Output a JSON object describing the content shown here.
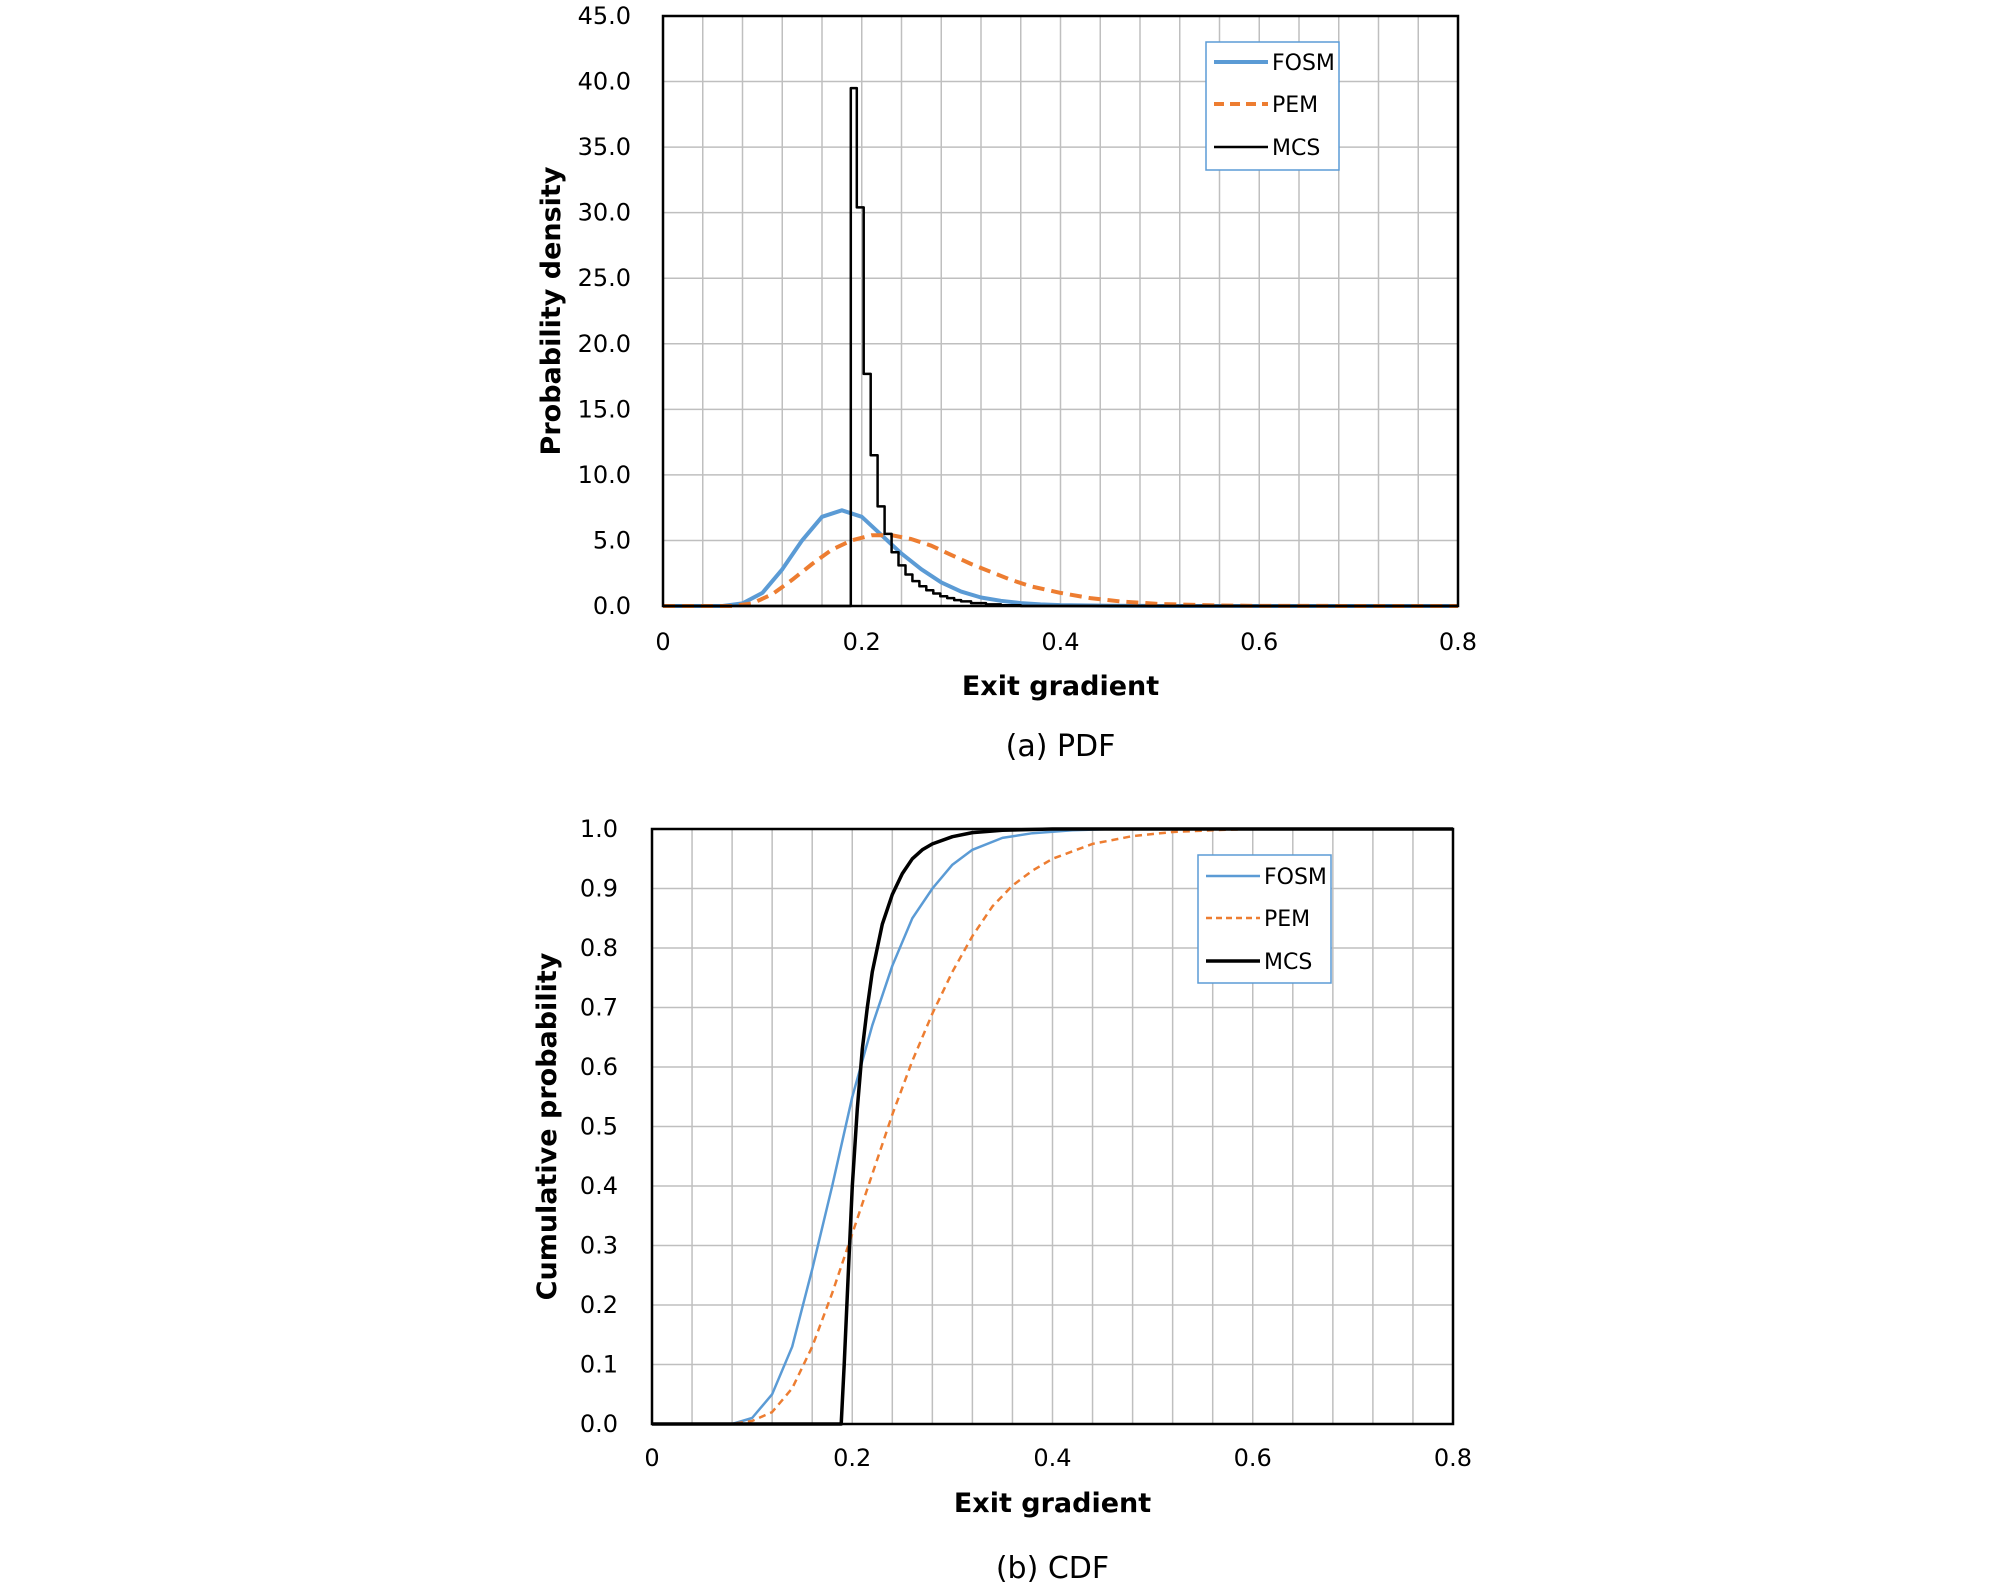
{
  "colors": {
    "fosm": "#5b9bd5",
    "pem": "#ed7d31",
    "mcs": "#000000",
    "grid": "#bfbfbf"
  },
  "chart_data": [
    {
      "type": "line",
      "caption": "(a)  PDF",
      "xlabel": "Exit gradient",
      "ylabel": "Probability density",
      "xlim": [
        0,
        0.8
      ],
      "ylim": [
        0,
        45
      ],
      "x_ticks": [
        0,
        0.2,
        0.4,
        0.6,
        0.8
      ],
      "x_tick_labels": [
        "0",
        "0.2",
        "0.4",
        "0.6",
        "0.8"
      ],
      "y_ticks": [
        0,
        5,
        10,
        15,
        20,
        25,
        30,
        35,
        40,
        45
      ],
      "y_tick_labels": [
        "0.0",
        "5.0",
        "10.0",
        "15.0",
        "20.0",
        "25.0",
        "30.0",
        "35.0",
        "40.0",
        "45.0"
      ],
      "grid": true,
      "legend": "top-right",
      "series": [
        {
          "name": "FOSM",
          "style": "solid",
          "x": [
            0,
            0.06,
            0.08,
            0.1,
            0.12,
            0.14,
            0.16,
            0.18,
            0.2,
            0.22,
            0.24,
            0.26,
            0.28,
            0.3,
            0.32,
            0.34,
            0.36,
            0.38,
            0.4,
            0.45,
            0.5,
            0.6,
            0.8
          ],
          "y": [
            0,
            0,
            0.2,
            1.0,
            2.8,
            5.0,
            6.8,
            7.3,
            6.8,
            5.4,
            4.0,
            2.8,
            1.8,
            1.1,
            0.65,
            0.4,
            0.22,
            0.12,
            0.07,
            0.02,
            0,
            0,
            0
          ]
        },
        {
          "name": "PEM",
          "style": "dashed",
          "x": [
            0,
            0.07,
            0.09,
            0.11,
            0.13,
            0.15,
            0.17,
            0.19,
            0.21,
            0.23,
            0.25,
            0.27,
            0.29,
            0.31,
            0.33,
            0.35,
            0.37,
            0.4,
            0.43,
            0.46,
            0.5,
            0.55,
            0.6,
            0.8
          ],
          "y": [
            0,
            0,
            0.2,
            0.9,
            2.0,
            3.2,
            4.3,
            5.0,
            5.4,
            5.4,
            5.1,
            4.6,
            3.9,
            3.2,
            2.6,
            2.0,
            1.5,
            1.0,
            0.6,
            0.35,
            0.15,
            0.05,
            0.01,
            0
          ]
        },
        {
          "name": "MCS",
          "style": "step",
          "x": [
            0,
            0.189,
            0.189,
            0.195,
            0.195,
            0.202,
            0.202,
            0.209,
            0.209,
            0.216,
            0.216,
            0.223,
            0.223,
            0.23,
            0.23,
            0.237,
            0.237,
            0.244,
            0.244,
            0.251,
            0.251,
            0.258,
            0.258,
            0.265,
            0.265,
            0.272,
            0.272,
            0.279,
            0.279,
            0.286,
            0.286,
            0.293,
            0.293,
            0.3,
            0.3,
            0.31,
            0.31,
            0.325,
            0.325,
            0.34,
            0.34,
            0.36,
            0.36,
            0.8
          ],
          "y": [
            0,
            0,
            39.5,
            39.5,
            30.4,
            30.4,
            17.7,
            17.7,
            11.5,
            11.5,
            7.6,
            7.6,
            5.5,
            5.5,
            4.1,
            4.1,
            3.1,
            3.1,
            2.4,
            2.4,
            1.9,
            1.9,
            1.5,
            1.5,
            1.2,
            1.2,
            0.95,
            0.95,
            0.75,
            0.75,
            0.6,
            0.6,
            0.45,
            0.45,
            0.35,
            0.35,
            0.22,
            0.22,
            0.12,
            0.12,
            0.05,
            0.05,
            0,
            0
          ]
        }
      ]
    },
    {
      "type": "line",
      "caption": "(b)  CDF",
      "xlabel": "Exit gradient",
      "ylabel": "Cumulative probability",
      "xlim": [
        0,
        0.8
      ],
      "ylim": [
        0,
        1
      ],
      "x_ticks": [
        0,
        0.2,
        0.4,
        0.6,
        0.8
      ],
      "x_tick_labels": [
        "0",
        "0.2",
        "0.4",
        "0.6",
        "0.8"
      ],
      "y_ticks": [
        0,
        0.1,
        0.2,
        0.3,
        0.4,
        0.5,
        0.6,
        0.7,
        0.8,
        0.9,
        1.0
      ],
      "y_tick_labels": [
        "0.0",
        "0.1",
        "0.2",
        "0.3",
        "0.4",
        "0.5",
        "0.6",
        "0.7",
        "0.8",
        "0.9",
        "1.0"
      ],
      "grid": true,
      "legend": "top-right",
      "series": [
        {
          "name": "FOSM",
          "style": "solid",
          "x": [
            0,
            0.08,
            0.1,
            0.12,
            0.14,
            0.16,
            0.18,
            0.2,
            0.22,
            0.24,
            0.26,
            0.28,
            0.3,
            0.32,
            0.35,
            0.38,
            0.42,
            0.46,
            0.8
          ],
          "y": [
            0,
            0,
            0.01,
            0.05,
            0.13,
            0.26,
            0.4,
            0.55,
            0.67,
            0.77,
            0.85,
            0.9,
            0.94,
            0.965,
            0.985,
            0.993,
            0.998,
            1.0,
            1.0
          ]
        },
        {
          "name": "PEM",
          "style": "dashed",
          "x": [
            0,
            0.08,
            0.1,
            0.12,
            0.14,
            0.16,
            0.18,
            0.2,
            0.22,
            0.24,
            0.26,
            0.28,
            0.3,
            0.32,
            0.34,
            0.36,
            0.38,
            0.4,
            0.44,
            0.48,
            0.52,
            0.56,
            0.6,
            0.8
          ],
          "y": [
            0,
            0,
            0.005,
            0.02,
            0.06,
            0.13,
            0.22,
            0.32,
            0.42,
            0.52,
            0.61,
            0.69,
            0.76,
            0.82,
            0.87,
            0.905,
            0.93,
            0.95,
            0.975,
            0.988,
            0.995,
            0.998,
            1.0,
            1.0
          ]
        },
        {
          "name": "MCS",
          "style": "solid",
          "x": [
            0,
            0.189,
            0.192,
            0.196,
            0.2,
            0.205,
            0.21,
            0.215,
            0.22,
            0.23,
            0.24,
            0.25,
            0.26,
            0.27,
            0.28,
            0.3,
            0.32,
            0.35,
            0.4,
            0.8
          ],
          "y": [
            0,
            0,
            0.1,
            0.25,
            0.4,
            0.53,
            0.63,
            0.7,
            0.76,
            0.84,
            0.89,
            0.925,
            0.95,
            0.965,
            0.975,
            0.987,
            0.994,
            0.998,
            1.0,
            1.0
          ]
        }
      ]
    }
  ]
}
